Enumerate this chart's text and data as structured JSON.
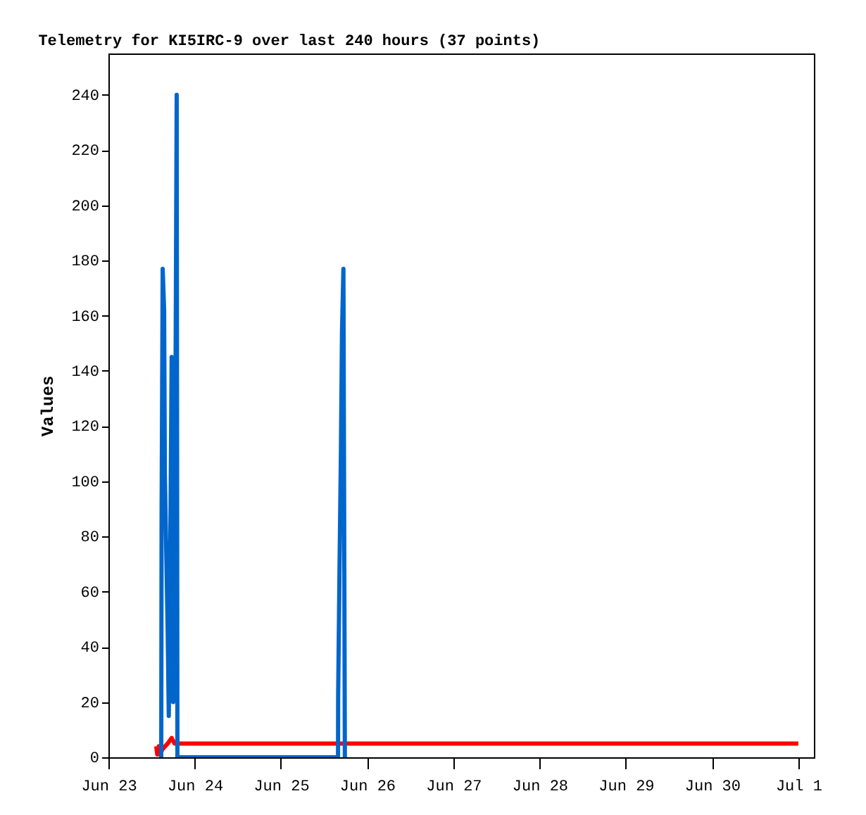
{
  "chart_data": {
    "type": "line",
    "title": "Telemetry for KI5IRC-9 over last 240 hours (37 points)",
    "ylabel": "Values",
    "xlim": [
      "--06-23T00:00",
      "--07-01T04:20"
    ],
    "xticks": [
      {
        "value": "--06-23",
        "label": "Jun 23"
      },
      {
        "value": "--06-24",
        "label": "Jun 24"
      },
      {
        "value": "--06-25",
        "label": "Jun 25"
      },
      {
        "value": "--06-26",
        "label": "Jun 26"
      },
      {
        "value": "--06-27",
        "label": "Jun 27"
      },
      {
        "value": "--06-28",
        "label": "Jun 28"
      },
      {
        "value": "--06-29",
        "label": "Jun 29"
      },
      {
        "value": "--06-30",
        "label": "Jun 30"
      },
      {
        "value": "--07-01",
        "label": "Jul 1"
      }
    ],
    "ylim": [
      0,
      255
    ],
    "yticks": [
      0,
      20,
      40,
      60,
      80,
      100,
      120,
      140,
      160,
      180,
      200,
      220,
      240
    ],
    "grid": false,
    "marker": "none",
    "line_style": "solid",
    "series": [
      {
        "color": "#ff0000",
        "x": [
          "--06-23T13:18",
          "--06-23T13:36",
          "--06-23T14:00",
          "--06-23T14:18",
          "--06-23T15:06",
          "--06-23T16:30",
          "--06-23T17:36",
          "--06-23T18:24",
          "--07-01T00:00"
        ],
        "values": [
          4,
          1,
          4,
          1,
          3,
          5,
          7,
          5,
          5
        ]
      },
      {
        "color": "#0066cc",
        "x": [
          "--06-23T14:42",
          "--06-23T14:48",
          "--06-23T15:06",
          "--06-23T15:30",
          "--06-23T15:36",
          "--06-23T15:42",
          "--06-23T16:06",
          "--06-23T16:30",
          "--06-23T16:48",
          "--06-23T17:12",
          "--06-23T17:36",
          "--06-23T18:00",
          "--06-23T18:24",
          "--06-23T19:00",
          "--06-23T19:12",
          "--06-25T15:54",
          "--06-25T15:56",
          "--06-25T16:18",
          "--06-25T16:42",
          "--06-25T17:00",
          "--06-25T17:24",
          "--06-25T17:48"
        ],
        "values": [
          0,
          88,
          177,
          162,
          133,
          103,
          74,
          45,
          15,
          73,
          145,
          20,
          45,
          240,
          0,
          0,
          22,
          67,
          110,
          154,
          177,
          0
        ]
      }
    ]
  }
}
